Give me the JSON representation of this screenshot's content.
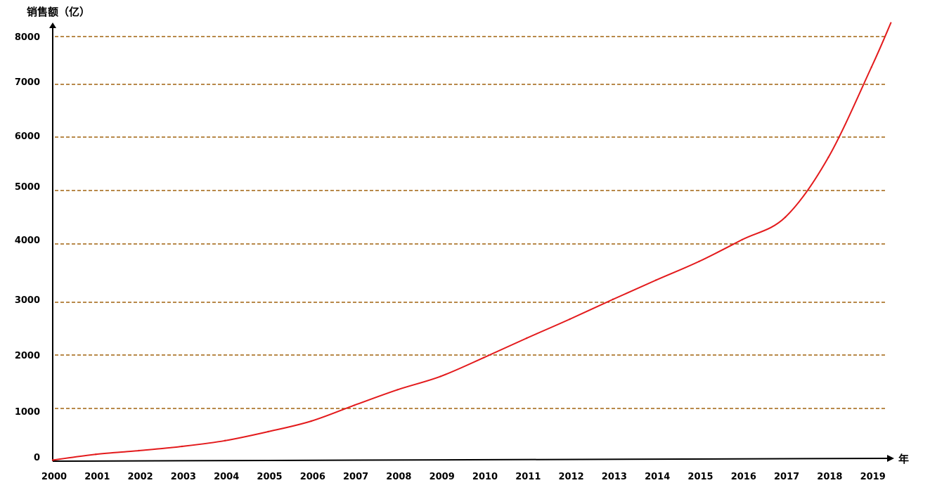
{
  "chart_data": {
    "type": "line",
    "title": "",
    "xlabel": "年",
    "ylabel": "销售额（亿）",
    "x": [
      "2000",
      "2001",
      "2002",
      "2003",
      "2004",
      "2005",
      "2006",
      "2007",
      "2008",
      "2009",
      "2010",
      "2011",
      "2012",
      "2013",
      "2014",
      "2015",
      "2016",
      "2017",
      "2018",
      "2019"
    ],
    "y_ticks": [
      "0",
      "1000",
      "2000",
      "3000",
      "4000",
      "5000",
      "6000",
      "7000",
      "8000"
    ],
    "series": [
      {
        "values": [
          20,
          130,
          200,
          280,
          390,
          560,
          760,
          1060,
          1350,
          1600,
          1950,
          2320,
          2680,
          3050,
          3380,
          3700,
          4080,
          4500,
          5620,
          7360
        ],
        "color": "#e31a1c"
      }
    ],
    "ylim": [
      0,
      8300
    ],
    "grid": true,
    "grid_style": "dashed",
    "grid_color": "#a0620e",
    "legend": "none",
    "axis_arrows": true
  }
}
